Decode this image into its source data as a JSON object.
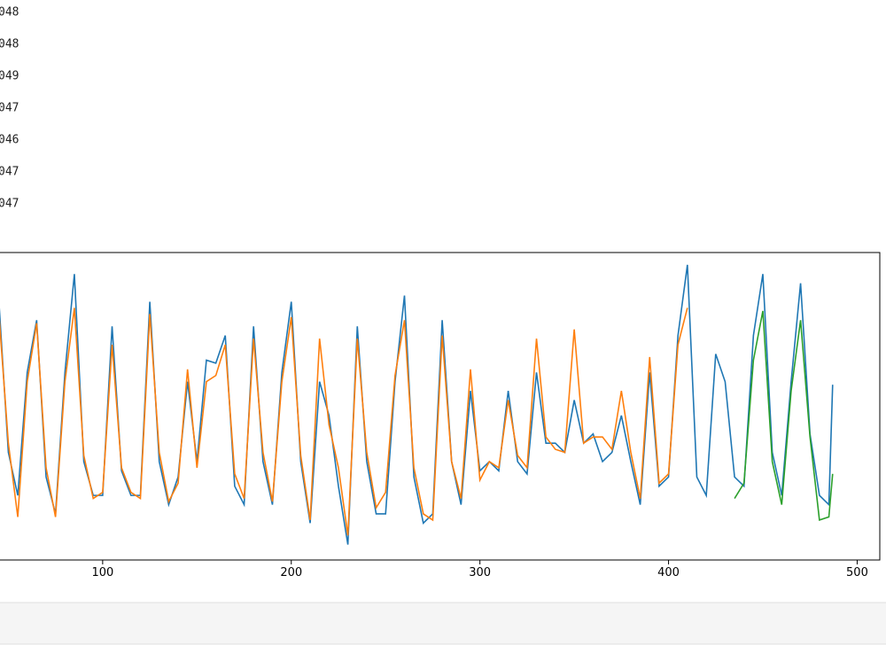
{
  "output_lines": [
    "048",
    "048",
    "049",
    "047",
    "046",
    "047",
    "047"
  ],
  "chart_data": {
    "type": "line",
    "x": [
      45,
      50,
      55,
      60,
      65,
      70,
      75,
      80,
      85,
      90,
      95,
      100,
      105,
      110,
      115,
      120,
      125,
      130,
      135,
      140,
      145,
      150,
      155,
      160,
      165,
      170,
      175,
      180,
      185,
      190,
      195,
      200,
      205,
      210,
      215,
      220,
      225,
      230,
      235,
      240,
      245,
      250,
      255,
      260,
      265,
      270,
      275,
      280,
      285,
      290,
      295,
      300,
      305,
      310,
      315,
      320,
      325,
      330,
      335,
      340,
      345,
      350,
      355,
      360,
      365,
      370,
      375,
      380,
      385,
      390,
      395,
      400,
      405,
      410,
      415,
      420,
      425,
      430,
      435,
      440,
      445,
      450,
      455,
      460,
      465,
      470,
      475,
      480,
      485,
      487
    ],
    "series": [
      {
        "color": "#1f77b4",
        "values": [
          84,
          35,
          21,
          61,
          78,
          27,
          15,
          61,
          93,
          32,
          21,
          21,
          76,
          29,
          21,
          21,
          84,
          32,
          18,
          27,
          58,
          32,
          65,
          64,
          73,
          24,
          18,
          76,
          32,
          18,
          61,
          84,
          32,
          12,
          58,
          47,
          24,
          5,
          76,
          32,
          15,
          15,
          58,
          86,
          27,
          12,
          15,
          78,
          32,
          18,
          55,
          29,
          32,
          29,
          55,
          32,
          28,
          61,
          38,
          38,
          35,
          52,
          38,
          41,
          32,
          35,
          47,
          32,
          18,
          61,
          24,
          27,
          73,
          96,
          27,
          21,
          67,
          58,
          27,
          24,
          73,
          93,
          35,
          21,
          58,
          90,
          41,
          21,
          18,
          57
        ]
      },
      {
        "color": "#ff7f0e",
        "values": [
          80,
          38,
          14,
          58,
          77,
          30,
          14,
          58,
          82,
          34,
          20,
          22,
          70,
          30,
          22,
          20,
          80,
          35,
          19,
          25,
          62,
          30,
          58,
          60,
          70,
          28,
          20,
          72,
          35,
          19,
          58,
          79,
          34,
          13,
          72,
          44,
          30,
          8,
          72,
          35,
          17,
          22,
          60,
          78,
          30,
          15,
          13,
          73,
          32,
          20,
          62,
          26,
          32,
          30,
          52,
          34,
          30,
          72,
          40,
          36,
          35,
          75,
          38,
          40,
          40,
          36,
          55,
          35,
          20,
          66,
          25,
          28,
          70,
          82,
          null,
          null,
          null,
          null,
          null,
          null,
          null,
          null,
          null,
          null,
          null,
          null,
          null,
          null,
          null,
          null
        ]
      },
      {
        "color": "#2ca02c",
        "values": [
          null,
          null,
          null,
          null,
          null,
          null,
          null,
          null,
          null,
          null,
          null,
          null,
          null,
          null,
          null,
          null,
          null,
          null,
          null,
          null,
          null,
          null,
          null,
          null,
          null,
          null,
          null,
          null,
          null,
          null,
          null,
          null,
          null,
          null,
          null,
          null,
          null,
          null,
          null,
          null,
          null,
          null,
          null,
          null,
          null,
          null,
          null,
          null,
          null,
          null,
          null,
          null,
          null,
          null,
          null,
          null,
          null,
          null,
          null,
          null,
          null,
          null,
          null,
          null,
          null,
          null,
          null,
          null,
          null,
          null,
          null,
          null,
          null,
          null,
          null,
          null,
          null,
          null,
          20,
          25,
          65,
          81,
          32,
          18,
          55,
          78,
          40,
          13,
          14,
          28
        ]
      }
    ],
    "xlim": [
      -24,
      512
    ],
    "ylim": [
      0,
      100
    ],
    "xticks": [
      100,
      200,
      300,
      400,
      500
    ]
  }
}
